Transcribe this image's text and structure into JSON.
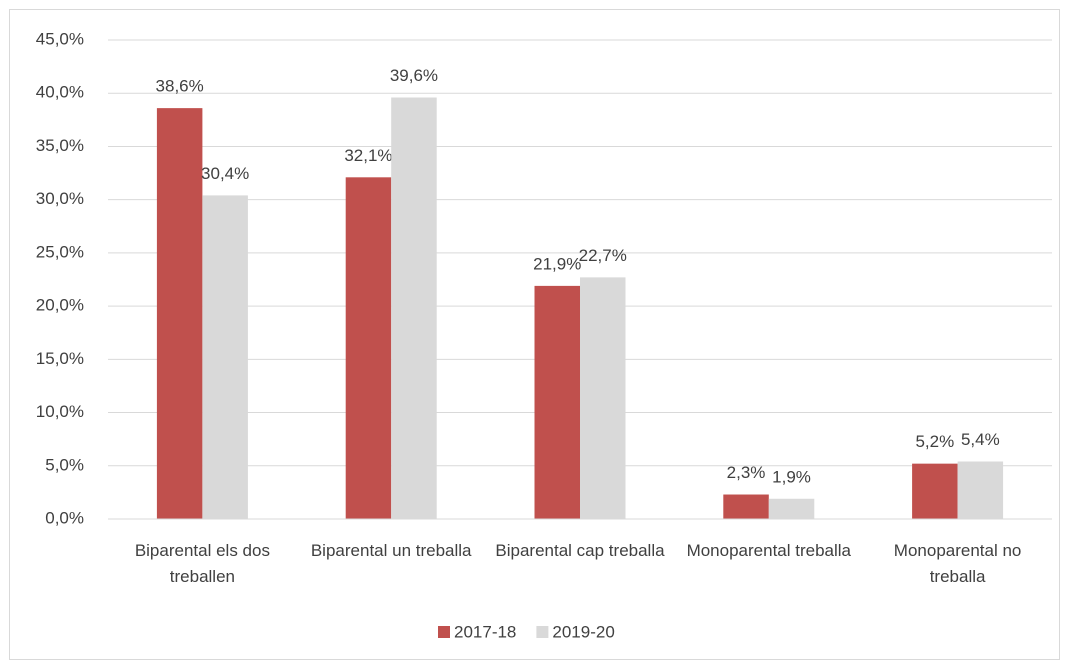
{
  "chart_data": {
    "type": "bar",
    "categories": [
      "Biparental els dos treballen",
      "Biparental un treballa",
      "Biparental cap treballa",
      "Monoparental treballa",
      "Monoparental no treballa"
    ],
    "series": [
      {
        "name": "2017-18",
        "color": "#c0504d",
        "values": [
          38.6,
          32.1,
          21.9,
          2.3,
          5.2
        ],
        "value_labels": [
          "38,6%",
          "32,1%",
          "21,9%",
          "2,3%",
          "5,2%"
        ]
      },
      {
        "name": "2019-20",
        "color": "#d9d9d9",
        "values": [
          30.4,
          39.6,
          22.7,
          1.9,
          5.4
        ],
        "value_labels": [
          "30,4%",
          "39,6%",
          "22,7%",
          "1,9%",
          "5,4%"
        ]
      }
    ],
    "ylim": [
      0,
      45
    ],
    "yticks": [
      {
        "value": 0,
        "label": "0,0%"
      },
      {
        "value": 5,
        "label": "5,0%"
      },
      {
        "value": 10,
        "label": "10,0%"
      },
      {
        "value": 15,
        "label": "15,0%"
      },
      {
        "value": 20,
        "label": "20,0%"
      },
      {
        "value": 25,
        "label": "25,0%"
      },
      {
        "value": 30,
        "label": "30,0%"
      },
      {
        "value": 35,
        "label": "35,0%"
      },
      {
        "value": 40,
        "label": "40,0%"
      },
      {
        "value": 45,
        "label": "45,0%"
      }
    ],
    "grid": true,
    "legend": "bottom"
  }
}
